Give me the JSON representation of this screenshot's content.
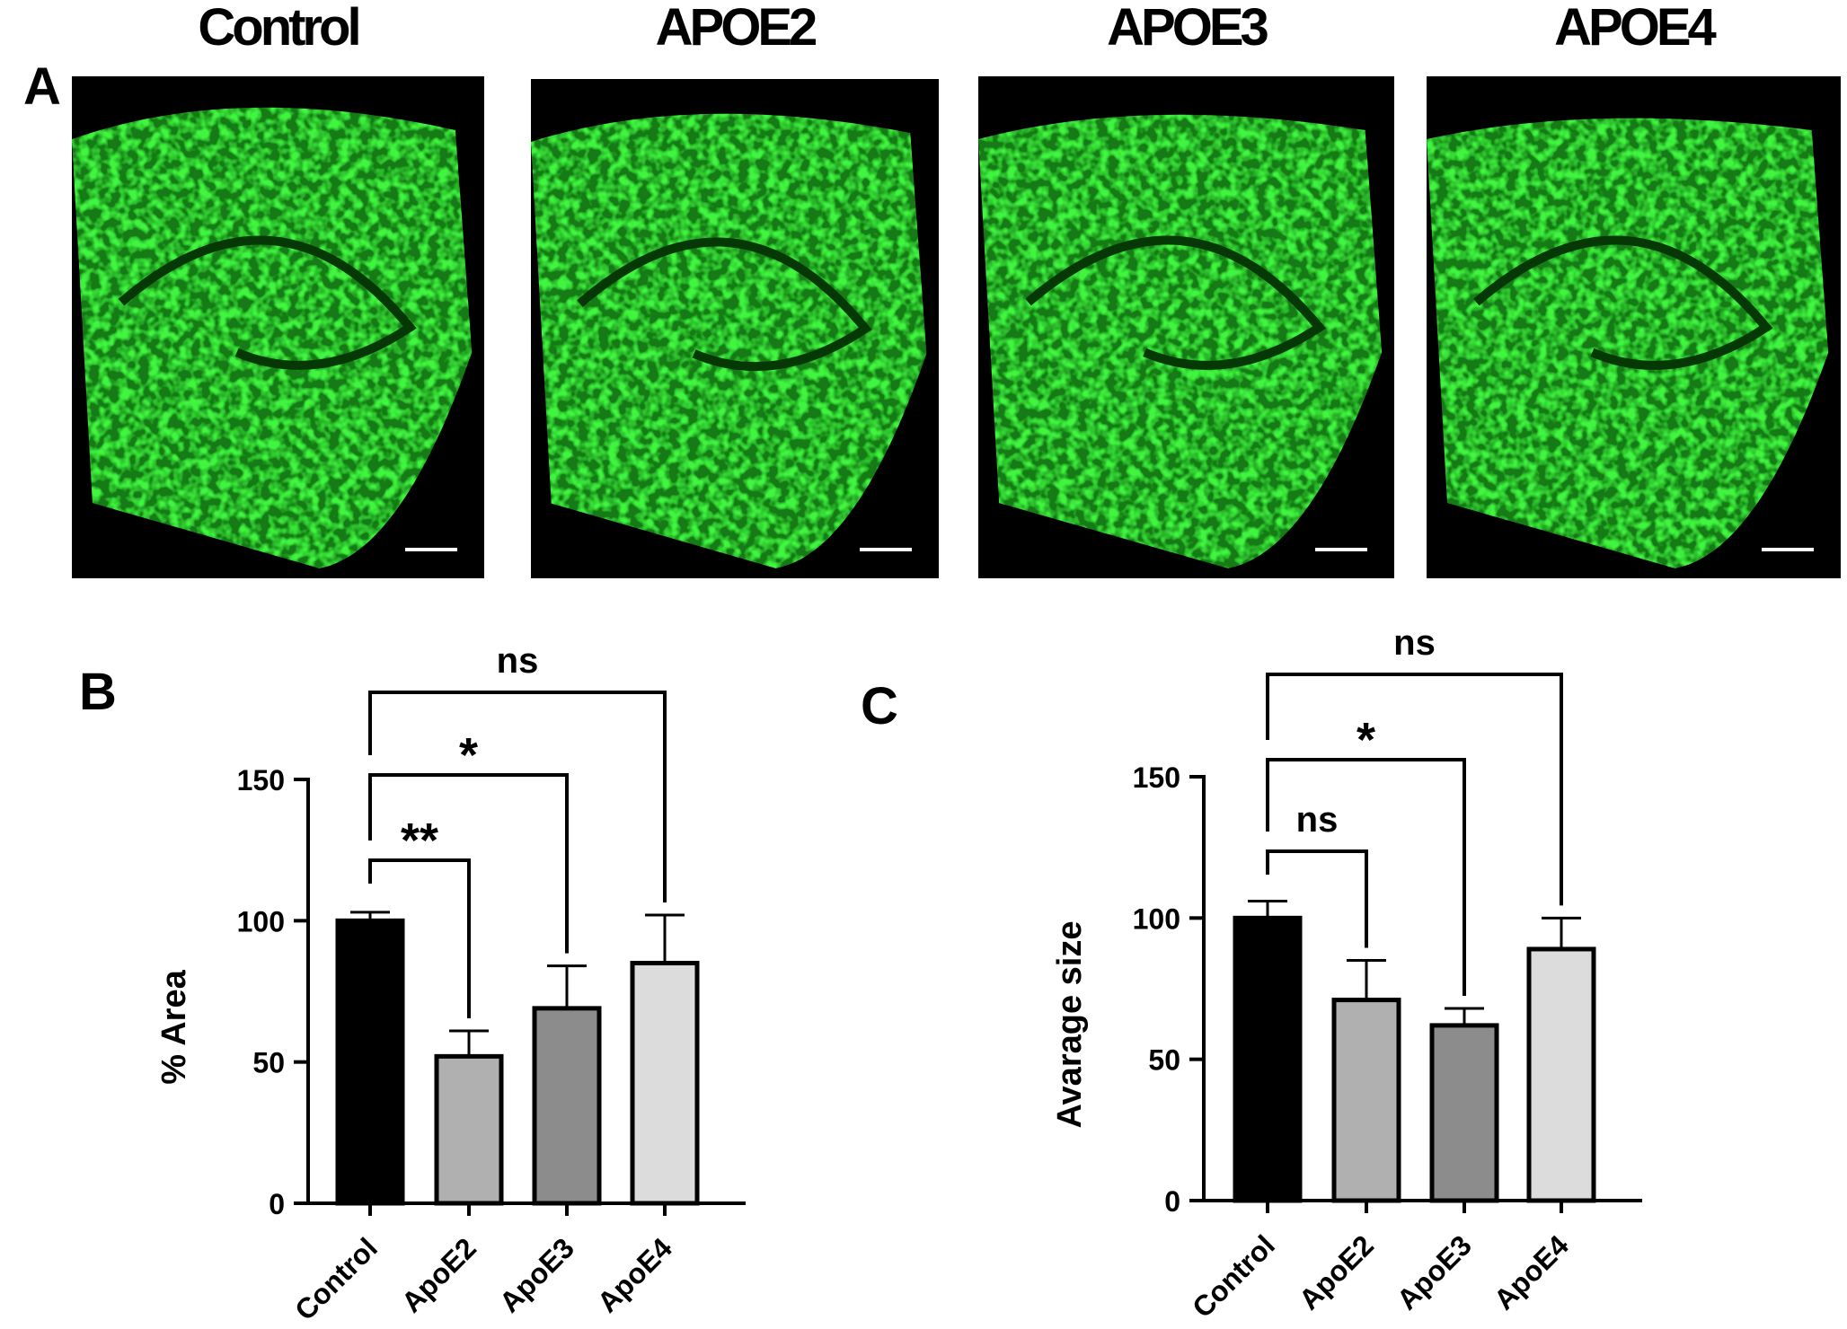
{
  "panel_a": {
    "label": "A",
    "images": [
      {
        "title": "Control"
      },
      {
        "title": "APOE2"
      },
      {
        "title": "APOE3"
      },
      {
        "title": "APOE4"
      }
    ]
  },
  "chart_data": [
    {
      "type": "bar",
      "panel_label": "B",
      "ylabel": "% Area",
      "categories": [
        "Control",
        "ApoE2",
        "ApoE3",
        "ApoE4"
      ],
      "values": [
        100,
        52,
        69,
        85
      ],
      "errors": [
        3,
        9,
        15,
        17
      ],
      "colors": [
        "#000000",
        "#b0b0b0",
        "#8c8c8c",
        "#dcdcdc"
      ],
      "ylim": [
        0,
        150
      ],
      "yticks": [
        0,
        50,
        100,
        150
      ],
      "annotations": [
        {
          "label": "**",
          "between": [
            0,
            1
          ]
        },
        {
          "label": "*",
          "between": [
            0,
            2
          ]
        },
        {
          "label": "ns",
          "between": [
            0,
            3
          ]
        }
      ]
    },
    {
      "type": "bar",
      "panel_label": "C",
      "ylabel": "Avarage size",
      "categories": [
        "Control",
        "ApoE2",
        "ApoE3",
        "ApoE4"
      ],
      "values": [
        100,
        71,
        62,
        89
      ],
      "errors": [
        6,
        14,
        6,
        11
      ],
      "colors": [
        "#000000",
        "#b0b0b0",
        "#8c8c8c",
        "#dcdcdc"
      ],
      "ylim": [
        0,
        150
      ],
      "yticks": [
        0,
        50,
        100,
        150
      ],
      "annotations": [
        {
          "label": "ns",
          "between": [
            0,
            1
          ]
        },
        {
          "label": "*",
          "between": [
            0,
            2
          ]
        },
        {
          "label": "ns",
          "between": [
            0,
            3
          ]
        }
      ]
    }
  ]
}
